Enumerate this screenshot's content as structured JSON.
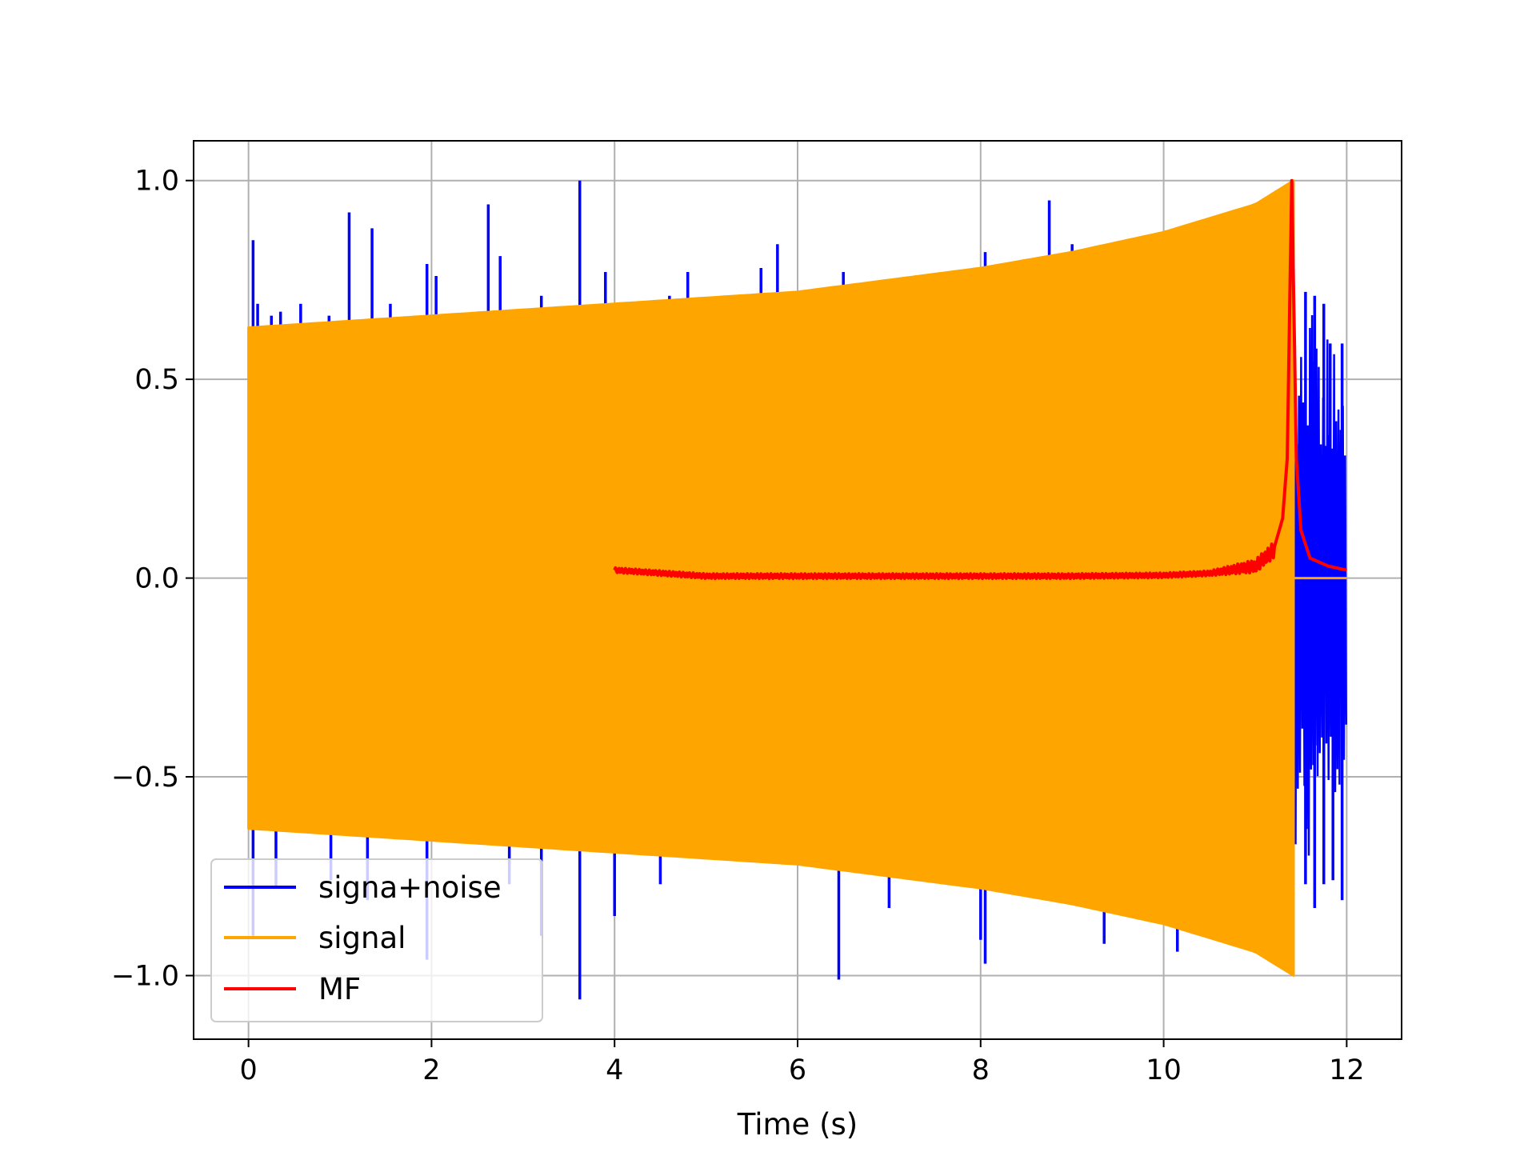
{
  "chart_data": {
    "type": "line",
    "title": "",
    "xlabel": "Time (s)",
    "ylabel": "",
    "xlim": [
      -0.6,
      12.6
    ],
    "ylim": [
      -1.16,
      1.1
    ],
    "xticks": [
      0,
      2,
      4,
      6,
      8,
      10,
      12
    ],
    "xtick_labels": [
      "0",
      "2",
      "4",
      "6",
      "8",
      "10",
      "12"
    ],
    "yticks": [
      -1.0,
      -0.5,
      0.0,
      0.5,
      1.0
    ],
    "ytick_labels": [
      "−1.0",
      "−0.5",
      "0.0",
      "0.5",
      "1.0"
    ],
    "grid": true,
    "legend_position": "lower-left",
    "series": [
      {
        "name": "signa+noise",
        "color": "#0000ff",
        "x_range": [
          0,
          12
        ],
        "description_values": {
          "noise_spikes_up": [
            [
              0.05,
              0.85
            ],
            [
              0.1,
              0.69
            ],
            [
              0.25,
              0.66
            ],
            [
              0.35,
              0.67
            ],
            [
              0.57,
              0.69
            ],
            [
              0.88,
              0.66
            ],
            [
              1.1,
              0.92
            ],
            [
              1.35,
              0.88
            ],
            [
              1.55,
              0.69
            ],
            [
              1.95,
              0.79
            ],
            [
              2.05,
              0.76
            ],
            [
              2.62,
              0.94
            ],
            [
              2.75,
              0.81
            ],
            [
              3.2,
              0.71
            ],
            [
              3.62,
              1.0
            ],
            [
              3.9,
              0.77
            ],
            [
              4.6,
              0.71
            ],
            [
              4.8,
              0.77
            ],
            [
              5.6,
              0.78
            ],
            [
              5.78,
              0.84
            ],
            [
              6.5,
              0.77
            ],
            [
              8.05,
              0.82
            ],
            [
              8.75,
              0.95
            ],
            [
              9.0,
              0.84
            ],
            [
              11.55,
              0.72
            ],
            [
              11.65,
              0.71
            ],
            [
              11.75,
              0.69
            ],
            [
              11.82,
              0.59
            ],
            [
              11.95,
              0.59
            ]
          ],
          "noise_spikes_down": [
            [
              0.05,
              -0.9
            ],
            [
              0.3,
              -0.78
            ],
            [
              0.9,
              -0.76
            ],
            [
              1.3,
              -0.81
            ],
            [
              1.95,
              -0.96
            ],
            [
              2.85,
              -0.77
            ],
            [
              3.2,
              -0.9
            ],
            [
              3.62,
              -1.06
            ],
            [
              4.0,
              -0.85
            ],
            [
              4.5,
              -0.77
            ],
            [
              6.45,
              -1.01
            ],
            [
              7.0,
              -0.83
            ],
            [
              8.0,
              -0.91
            ],
            [
              8.05,
              -0.97
            ],
            [
              9.35,
              -0.92
            ],
            [
              10.15,
              -0.94
            ],
            [
              11.55,
              -0.77
            ],
            [
              11.65,
              -0.83
            ],
            [
              11.75,
              -0.77
            ],
            [
              11.85,
              -0.76
            ],
            [
              11.95,
              -0.81
            ]
          ],
          "tail_envelope": [
            [
              11.45,
              0.7
            ],
            [
              11.6,
              0.7
            ],
            [
              11.8,
              0.6
            ],
            [
              12.0,
              0.5
            ]
          ]
        }
      },
      {
        "name": "signal",
        "color": "#ffa500",
        "x_range": [
          0,
          11.42
        ],
        "envelope": [
          [
            0,
            0.63
          ],
          [
            2,
            0.66
          ],
          [
            4,
            0.69
          ],
          [
            6,
            0.72
          ],
          [
            8,
            0.78
          ],
          [
            9,
            0.82
          ],
          [
            10,
            0.87
          ],
          [
            11,
            0.94
          ],
          [
            11.42,
            1.0
          ]
        ]
      },
      {
        "name": "MF",
        "color": "#ff0000",
        "x_range": [
          4,
          12
        ],
        "values": [
          [
            4.0,
            0.02
          ],
          [
            5.0,
            0.005
          ],
          [
            6.0,
            0.005
          ],
          [
            7.0,
            0.005
          ],
          [
            8.0,
            0.005
          ],
          [
            9.0,
            0.005
          ],
          [
            10.0,
            0.007
          ],
          [
            10.5,
            0.012
          ],
          [
            11.0,
            0.03
          ],
          [
            11.2,
            0.07
          ],
          [
            11.3,
            0.15
          ],
          [
            11.35,
            0.3
          ],
          [
            11.4,
            1.0
          ],
          [
            11.45,
            0.3
          ],
          [
            11.5,
            0.12
          ],
          [
            11.6,
            0.05
          ],
          [
            11.8,
            0.03
          ],
          [
            12.0,
            0.02
          ]
        ]
      }
    ]
  }
}
